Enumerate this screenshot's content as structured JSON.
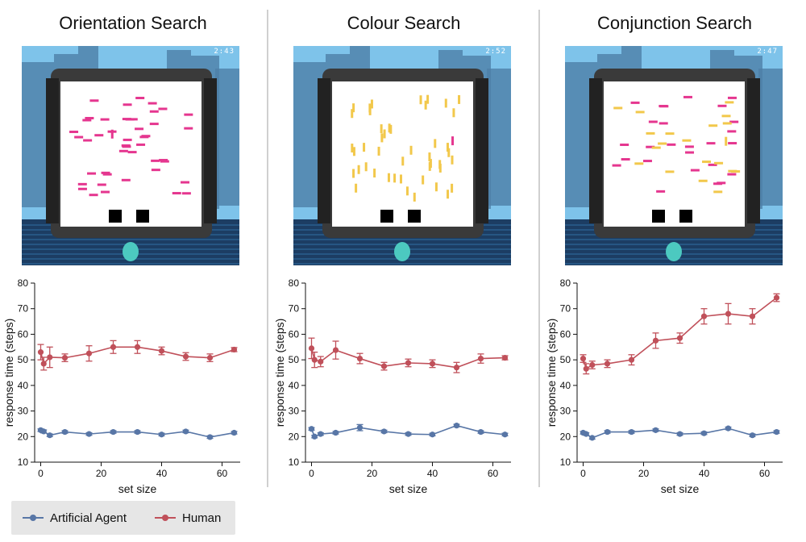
{
  "panels": [
    {
      "title": "Orientation Search",
      "timer": "2:43"
    },
    {
      "title": "Colour Search",
      "timer": "2:52"
    },
    {
      "title": "Conjunction Search",
      "timer": "2:47"
    }
  ],
  "legend": [
    {
      "label": "Artificial Agent",
      "color": "#5876a6"
    },
    {
      "label": "Human",
      "color": "#c0505a"
    }
  ],
  "chart_data": [
    {
      "type": "line",
      "title": "",
      "xlabel": "set size",
      "ylabel": "response time (steps)",
      "xlim": [
        -2,
        66
      ],
      "ylim": [
        10,
        80
      ],
      "xticks": [
        0,
        20,
        40,
        60
      ],
      "yticks": [
        10,
        20,
        30,
        40,
        50,
        60,
        70,
        80
      ],
      "series": [
        {
          "name": "Artificial Agent",
          "color": "#5876a6",
          "x": [
            0,
            1,
            3,
            8,
            16,
            24,
            32,
            40,
            48,
            56,
            64
          ],
          "y": [
            22.5,
            22,
            20.5,
            21.8,
            21,
            21.8,
            21.8,
            20.8,
            22,
            19.8,
            21.5
          ],
          "err": [
            0.5,
            0.6,
            0.5,
            0.5,
            0.5,
            0.5,
            0.5,
            0.5,
            0.5,
            0.5,
            0.5
          ]
        },
        {
          "name": "Human",
          "color": "#c0505a",
          "x": [
            0,
            1,
            3,
            8,
            16,
            24,
            32,
            40,
            48,
            56,
            64
          ],
          "y": [
            53,
            48.5,
            51,
            50.8,
            52.5,
            55,
            55,
            53.5,
            51.3,
            50.8,
            54
          ],
          "err": [
            3,
            2.5,
            4,
            1.5,
            3,
            2.5,
            2.5,
            1.5,
            1.5,
            1.5,
            0.8
          ]
        }
      ]
    },
    {
      "type": "line",
      "title": "",
      "xlabel": "set size",
      "ylabel": "response time (steps)",
      "xlim": [
        -2,
        66
      ],
      "ylim": [
        10,
        80
      ],
      "xticks": [
        0,
        20,
        40,
        60
      ],
      "yticks": [
        10,
        20,
        30,
        40,
        50,
        60,
        70,
        80
      ],
      "series": [
        {
          "name": "Artificial Agent",
          "color": "#5876a6",
          "x": [
            0,
            1,
            3,
            8,
            16,
            24,
            32,
            40,
            48,
            56,
            64
          ],
          "y": [
            23,
            20,
            21,
            21.5,
            23.5,
            22,
            21,
            20.8,
            24.3,
            21.8,
            20.8
          ],
          "err": [
            0.5,
            0.5,
            0.5,
            0.5,
            1.2,
            0.5,
            0.5,
            0.5,
            0.5,
            0.5,
            0.5
          ]
        },
        {
          "name": "Human",
          "color": "#c0505a",
          "x": [
            0,
            1,
            3,
            8,
            16,
            24,
            32,
            40,
            48,
            56,
            64
          ],
          "y": [
            54.5,
            50,
            49.3,
            53.8,
            50.5,
            47.5,
            48.8,
            48.5,
            47,
            50.5,
            50.8
          ],
          "err": [
            4,
            3,
            2,
            3.5,
            2,
            1.5,
            1.5,
            1.5,
            2,
            1.8,
            0.8
          ]
        }
      ]
    },
    {
      "type": "line",
      "title": "",
      "xlabel": "set size",
      "ylabel": "response time (steps)",
      "xlim": [
        -2,
        66
      ],
      "ylim": [
        10,
        80
      ],
      "xticks": [
        0,
        20,
        40,
        60
      ],
      "yticks": [
        10,
        20,
        30,
        40,
        50,
        60,
        70,
        80
      ],
      "series": [
        {
          "name": "Artificial Agent",
          "color": "#5876a6",
          "x": [
            0,
            1,
            3,
            8,
            16,
            24,
            32,
            40,
            48,
            56,
            64
          ],
          "y": [
            21.5,
            21,
            19.5,
            21.8,
            21.8,
            22.5,
            21,
            21.3,
            23.2,
            20.5,
            21.8
          ],
          "err": [
            0.5,
            0.5,
            0.5,
            0.5,
            0.5,
            0.5,
            0.5,
            0.5,
            0.5,
            0.5,
            0.5
          ]
        },
        {
          "name": "Human",
          "color": "#c0505a",
          "x": [
            0,
            1,
            3,
            8,
            16,
            24,
            32,
            40,
            48,
            56,
            64
          ],
          "y": [
            50.5,
            46.5,
            48,
            48.5,
            50,
            57.5,
            58.5,
            67,
            68,
            67,
            74.3
          ],
          "err": [
            1.5,
            2,
            1.5,
            1.5,
            2,
            3,
            2,
            3,
            4,
            3,
            1.5
          ]
        }
      ]
    }
  ]
}
